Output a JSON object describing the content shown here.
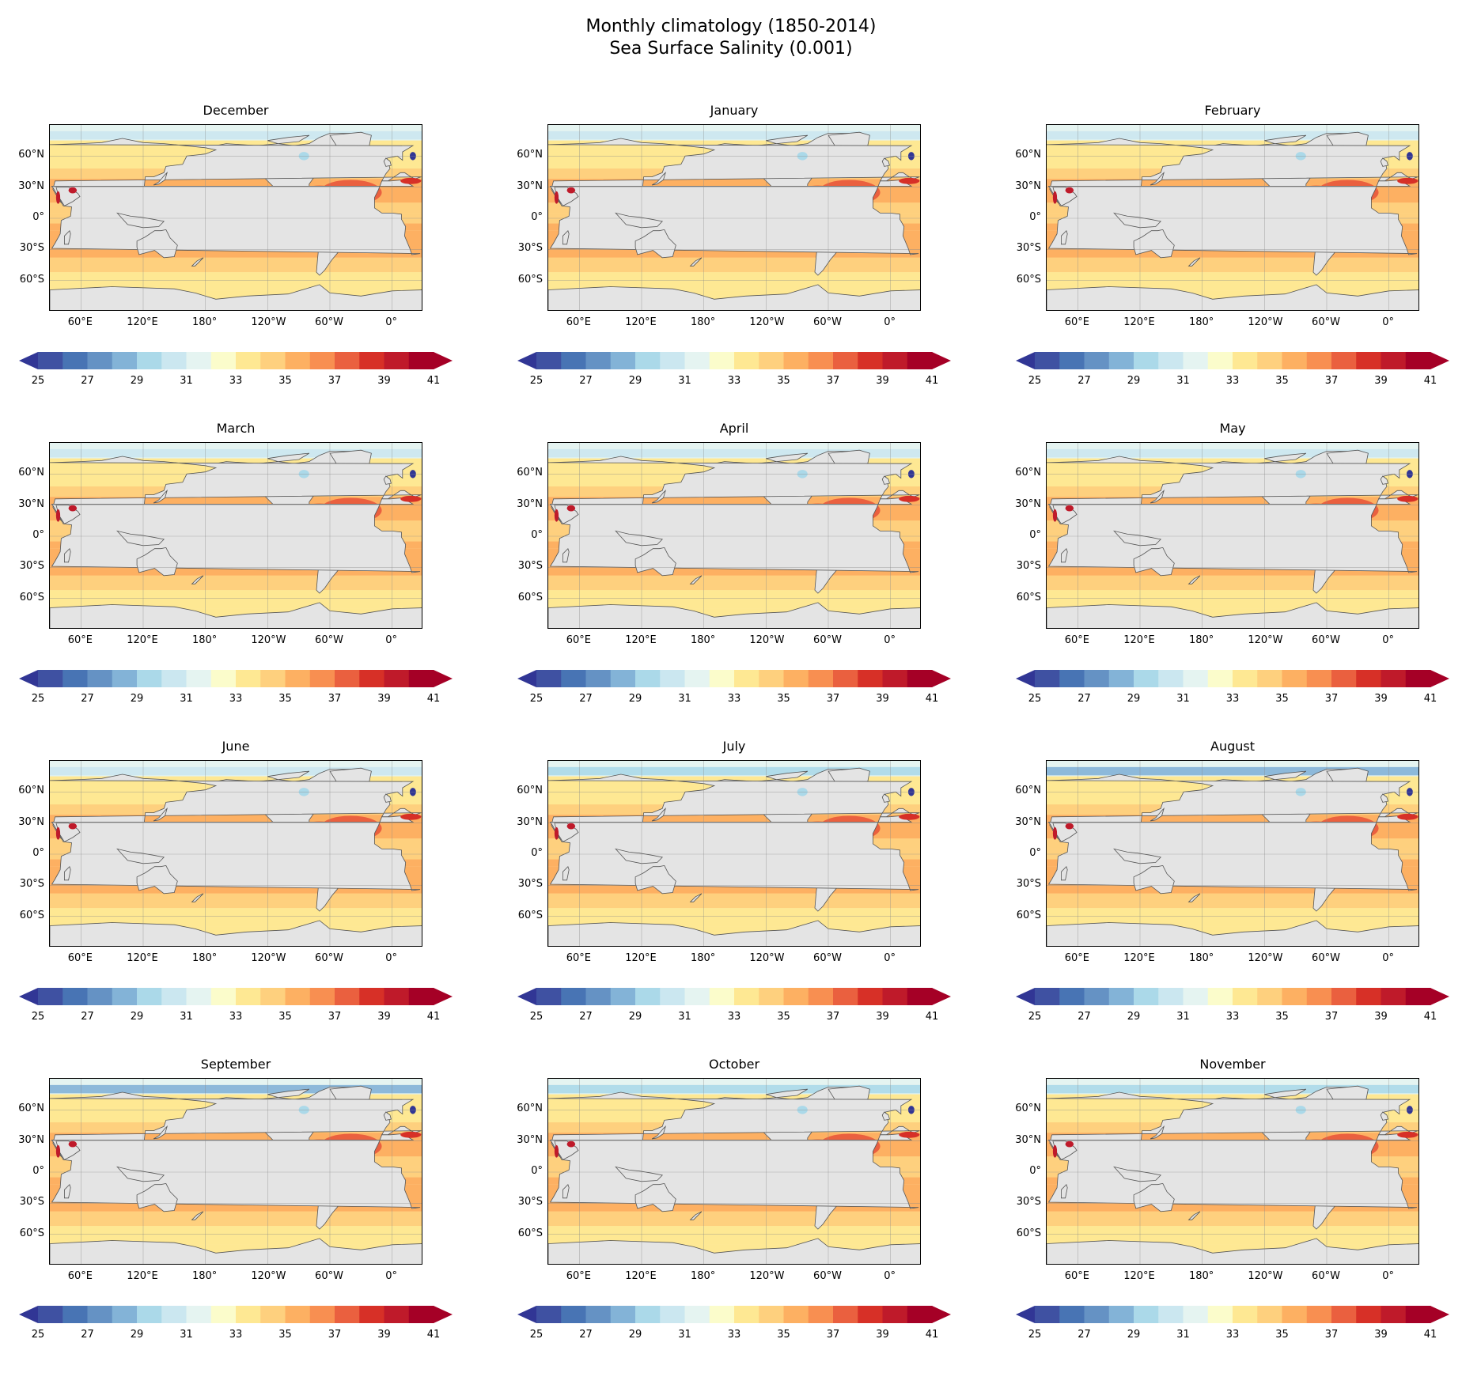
{
  "title": {
    "line1": "Monthly climatology (1850-2014)",
    "line2": "Sea Surface Salinity (0.001)"
  },
  "chart_data": {
    "type": "heatmap",
    "map_projection": "PlateCarree, centered 180°",
    "layout": "4 rows x 3 columns",
    "x_tick_labels": [
      "120°E",
      "180°",
      "120°W",
      "60°W",
      "0°",
      "60°E"
    ],
    "y_tick_labels": [
      "60°N",
      "30°N",
      "0°",
      "30°S",
      "60°S"
    ],
    "gridlines": true,
    "colorbar": {
      "orientation": "horizontal",
      "extend": "both",
      "ticks": [
        25,
        27,
        29,
        31,
        33,
        35,
        37,
        39,
        41
      ],
      "range": [
        25,
        41
      ],
      "step": 1,
      "colormap": "RdYlBu_r",
      "colors": [
        "#313695",
        "#3f51a2",
        "#4874b4",
        "#6592c4",
        "#83b3d7",
        "#abd9e9",
        "#cbe7f0",
        "#e5f4f1",
        "#fbfccb",
        "#fee893",
        "#fed07e",
        "#fdb062",
        "#f88f51",
        "#ea603f",
        "#d73027",
        "#bf1a2a",
        "#a50026"
      ]
    },
    "panels": [
      {
        "month": "December",
        "n_cyan_north": 0.3
      },
      {
        "month": "January",
        "n_cyan_north": 0.3
      },
      {
        "month": "February",
        "n_cyan_north": 0.3
      },
      {
        "month": "March",
        "n_cyan_north": 0.25
      },
      {
        "month": "April",
        "n_cyan_north": 0.25
      },
      {
        "month": "May",
        "n_cyan_north": 0.3
      },
      {
        "month": "June",
        "n_cyan_north": 0.5
      },
      {
        "month": "July",
        "n_cyan_north": 0.8
      },
      {
        "month": "August",
        "n_cyan_north": 0.95
      },
      {
        "month": "September",
        "n_cyan_north": 0.95
      },
      {
        "month": "October",
        "n_cyan_north": 0.8
      },
      {
        "month": "November",
        "n_cyan_north": 0.6
      }
    ],
    "representative_values": {
      "north_atlantic_subtropical_max": 37.5,
      "south_atlantic_subtropical": 36.5,
      "south_pacific_subtropical": 36.3,
      "north_pacific_subtropical": 35.0,
      "equatorial_pacific": 34.5,
      "southern_ocean": 34.0,
      "arctic_min": 28,
      "mediterranean": 38.5,
      "red_sea": 39.5,
      "baltic": 7,
      "hudson_bay": 29
    },
    "land_color": "#e4e4e4"
  }
}
